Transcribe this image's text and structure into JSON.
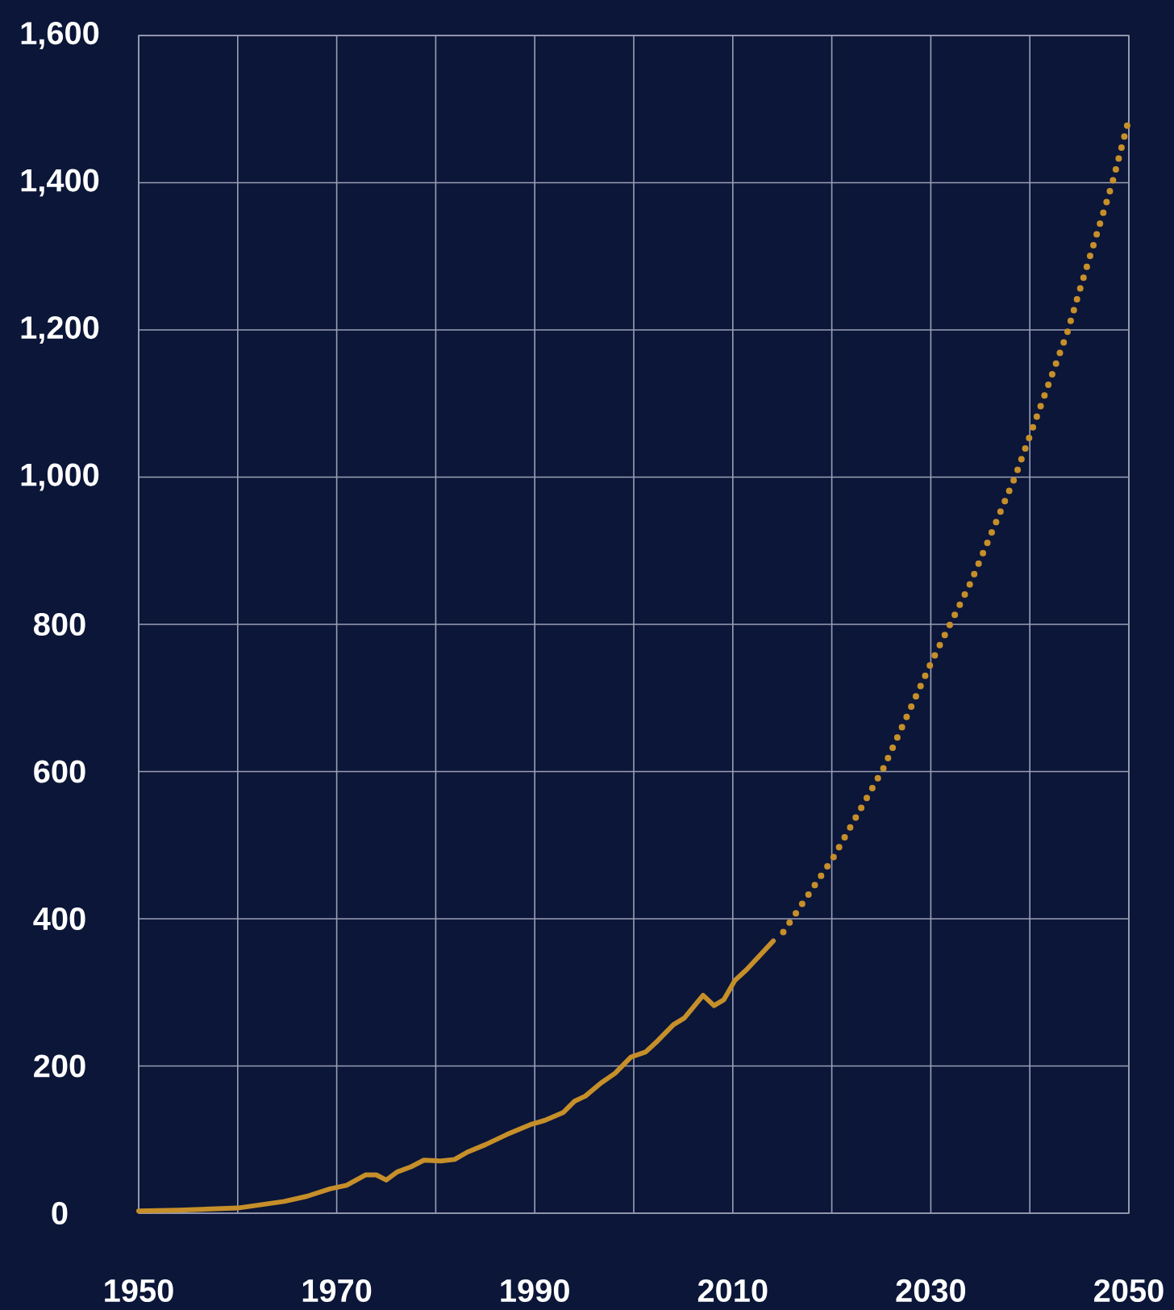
{
  "chart_data": {
    "type": "line",
    "grid": true,
    "xlim": [
      1950,
      2050
    ],
    "xticks": [
      1950,
      {
        "value": 1960,
        "label": null
      },
      1970,
      {
        "value": 1980,
        "label": null
      },
      1990,
      {
        "value": 2000,
        "label": null
      },
      2010,
      {
        "value": 2020,
        "label": null
      },
      2030,
      {
        "value": 2040,
        "label": null
      },
      2050
    ],
    "ylim": [
      0,
      1600
    ],
    "yticks": [
      0,
      200,
      400,
      600,
      800,
      {
        "value": 1000,
        "label": "1,000"
      },
      {
        "value": 1200,
        "label": "1,200"
      },
      {
        "value": 1400,
        "label": "1,400"
      },
      {
        "value": 1600,
        "label": "1,600"
      }
    ],
    "series": [
      {
        "color": "#c68f2a",
        "line_style": "solid",
        "x": [
          1950,
          1954,
          1960,
          1964.7,
          1967,
          1969.3,
          1971,
          1972.9,
          1974,
          1975,
          1976.1,
          1977.5,
          1978.8,
          1980.5,
          1981.9,
          1983.2,
          1985,
          1987.2,
          1989.7,
          1991,
          1992.9,
          1994,
          1995.1,
          1996.7,
          1998.1,
          1999.7,
          2001.2,
          2002.4,
          2004,
          2005.1,
          2007,
          2008.1,
          2009.1,
          2010.2,
          2011.4,
          2014.1
        ],
        "values": [
          3,
          4,
          7,
          16,
          23,
          33,
          38,
          52,
          52,
          45,
          56,
          63,
          72,
          71,
          73,
          83,
          93,
          107,
          121,
          126,
          137,
          152,
          159,
          177,
          190,
          212,
          219,
          234,
          256,
          265,
          296,
          282,
          290,
          316,
          331,
          370
        ]
      },
      {
        "color": "#c68f2a",
        "line_style": "dotted",
        "x": [
          2015.1,
          2020.1,
          2025.2,
          2030,
          2034,
          2038.5,
          2040,
          2043.8,
          2044.9,
          2048.3,
          2049.9
        ],
        "values": [
          382,
          482,
          604,
          747,
          856,
          1000,
          1056,
          1197,
          1248,
          1398,
          1481
        ]
      }
    ]
  }
}
